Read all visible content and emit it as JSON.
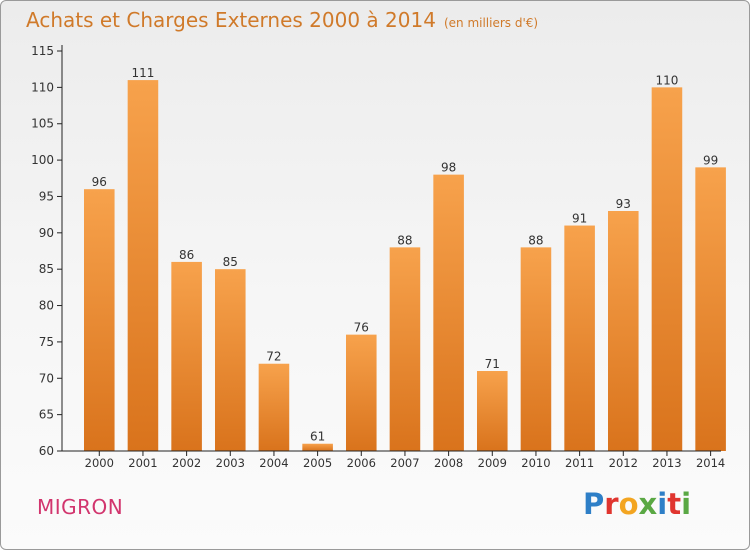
{
  "title": "Achats et Charges Externes 2000 à 2014",
  "subtitle": "(en milliers d'€)",
  "commune": "MIGRON",
  "logo": {
    "letters": [
      "P",
      "r",
      "o",
      "x",
      "i",
      "t",
      "i"
    ],
    "colors": [
      "#2e7fc7",
      "#e0352f",
      "#f3a521",
      "#5aa844",
      "#2e7fc7",
      "#e0352f",
      "#5aa844"
    ]
  },
  "colors": {
    "bar_light": "#f7a24c",
    "bar_dark": "#d9731c",
    "title": "#d07a2a",
    "commune": "#d2356e",
    "axis": "#222222"
  },
  "chart_data": {
    "type": "bar",
    "categories": [
      "2000",
      "2001",
      "2002",
      "2003",
      "2004",
      "2005",
      "2006",
      "2007",
      "2008",
      "2009",
      "2010",
      "2011",
      "2012",
      "2013",
      "2014"
    ],
    "values": [
      96,
      111,
      86,
      85,
      72,
      61,
      76,
      88,
      98,
      71,
      88,
      91,
      93,
      110,
      99
    ],
    "yticks": [
      60,
      65,
      70,
      75,
      80,
      85,
      90,
      95,
      100,
      105,
      110,
      115
    ],
    "ylim": [
      60,
      115
    ],
    "grid": false,
    "data_labels": true
  }
}
